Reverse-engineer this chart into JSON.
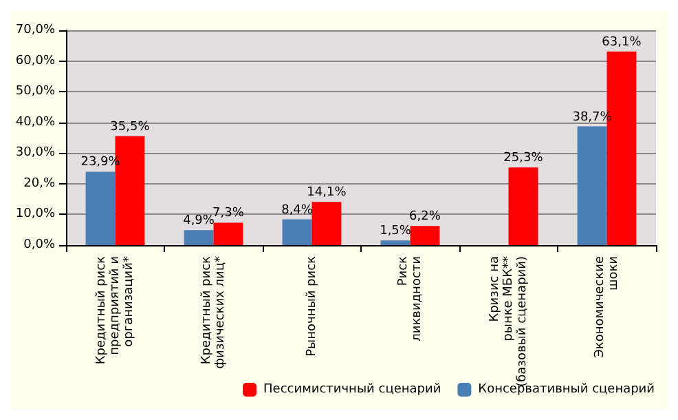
{
  "chart_data": {
    "type": "bar",
    "categories": [
      "Кредитный риск\nпредприятий и\nорганизаций*",
      "Кредитный риск\nфизических лиц*",
      "Рыночный риск",
      "Риск\nликвидности",
      "Кризис на\nрынке МБК**\n(базовый сценарий)",
      "Экономические\nшоки"
    ],
    "series": [
      {
        "name": "Консервативный сценарий",
        "color": "#4a7fb5",
        "values": [
          23.9,
          4.9,
          8.4,
          1.5,
          null,
          38.7
        ],
        "value_labels": [
          "23,9%",
          "4,9%",
          "8,4%",
          "1,5%",
          null,
          "38,7%"
        ]
      },
      {
        "name": "Пессимистичный сценарий",
        "color": "#ff0000",
        "values": [
          35.5,
          7.3,
          14.1,
          6.2,
          25.3,
          63.1
        ],
        "value_labels": [
          "35,5%",
          "7,3%",
          "14,1%",
          "6,2%",
          "25,3%",
          "63,1%"
        ]
      }
    ],
    "ylim": [
      0,
      70
    ],
    "yticks": [
      {
        "value": 0,
        "label": "0,0%"
      },
      {
        "value": 10,
        "label": "10,0%"
      },
      {
        "value": 20,
        "label": "20,%"
      },
      {
        "value": 30,
        "label": "30,0%"
      },
      {
        "value": 40,
        "label": "40,0%"
      },
      {
        "value": 50,
        "label": "50,0%"
      },
      {
        "value": 60,
        "label": "60,0%"
      },
      {
        "value": 70,
        "label": "70,0%"
      }
    ],
    "grid": "y",
    "legend": "bottom right"
  }
}
